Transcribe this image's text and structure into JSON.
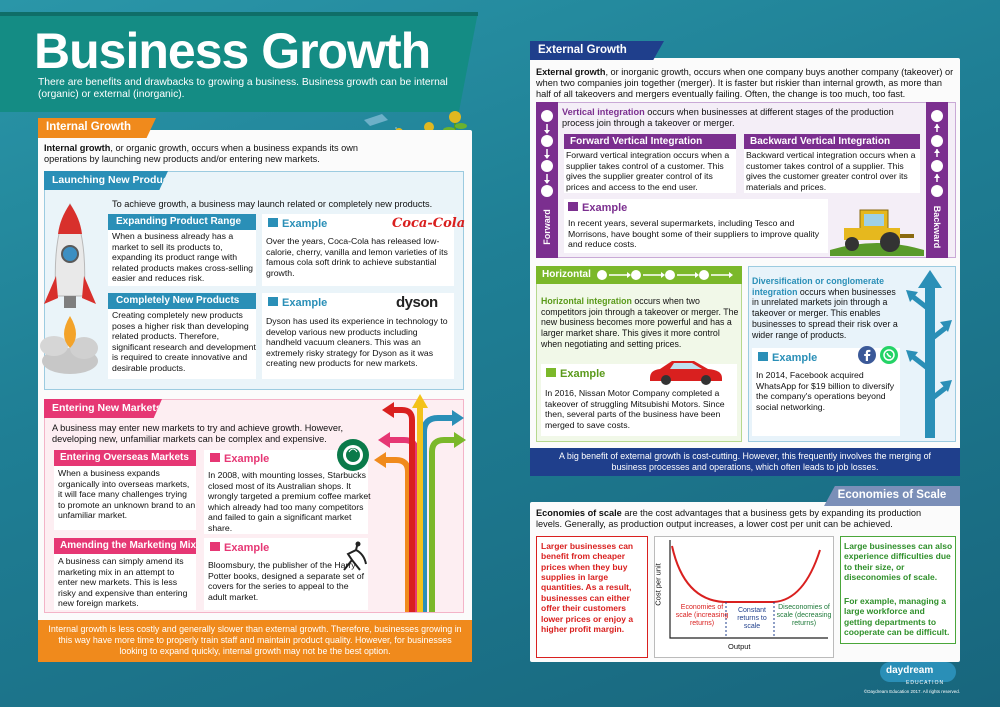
{
  "title": "Business Growth",
  "intro": "There are benefits and drawbacks to growing a business. Business growth can be internal (organic) or external (inorganic).",
  "internal": {
    "heading": "Internal Growth",
    "intro_bold": "Internal growth",
    "intro_rest": ", or organic growth, occurs when a business expands its own operations by launching new products and/or entering new markets.",
    "launching": {
      "heading": "Launching New Products",
      "intro": "To achieve growth, a business may launch related or completely new products.",
      "expanding": {
        "heading": "Expanding Product Range",
        "text": "When a business already has a market to sell its products to, expanding its product range with related products makes cross-selling easier and reduces risk.",
        "example_label": "Example",
        "example_text": "Over the years, Coca-Cola has released low-calorie, cherry, vanilla and lemon varieties of its famous cola soft drink to achieve substantial growth.",
        "logo": "Coca-Cola"
      },
      "completely": {
        "heading": "Completely New Products",
        "text": "Creating completely new products poses a higher risk than developing related products. Therefore, significant research and development is required to create innovative and desirable products.",
        "example_label": "Example",
        "example_text": "Dyson has used its experience in technology to develop various new products including handheld vacuum cleaners. This was an extremely risky strategy for Dyson as it was creating new products for new markets.",
        "logo": "dyson"
      }
    },
    "markets": {
      "heading": "Entering New Markets",
      "intro": "A business may enter new markets to try and achieve growth. However, developing new, unfamiliar markets can be complex and expensive.",
      "overseas": {
        "heading": "Entering Overseas Markets",
        "text": "When a business expands organically into overseas markets, it will face many challenges trying to promote an unknown brand to an unfamiliar market.",
        "example_label": "Example",
        "example_text": "In 2008, with mounting losses, Starbucks closed most of its Australian shops. It wrongly targeted a premium coffee market which already had too many competitors and failed to gain a significant market share."
      },
      "mix": {
        "heading": "Amending the Marketing Mix",
        "text": "A business can simply amend its marketing mix in an attempt to enter new markets. This is less risky and expensive than entering new foreign markets.",
        "example_label": "Example",
        "example_text": "Bloomsbury, the publisher of the Harry Potter books, designed a separate set of covers for the series to appeal to the adult market."
      }
    },
    "footer": "Internal growth is less costly and generally slower than external growth. Therefore, businesses growing in this way have more time to properly train staff and maintain product quality. However, for businesses looking to expand quickly, internal growth may not be the best option."
  },
  "external": {
    "heading": "External Growth",
    "intro_bold": "External growth",
    "intro_rest": ", or inorganic growth, occurs when one company buys another company (takeover) or when two companies join together (merger). It is faster but riskier than internal growth, as more than half of all takeovers and mergers eventually failing. Often, the change is too much, too fast.",
    "vertical": {
      "bold": "Vertical integration",
      "rest": " occurs when businesses at different stages of the production process join through a takeover or merger.",
      "forward_side": "Forward",
      "backward_side": "Backward",
      "forward": {
        "heading": "Forward Vertical Integration",
        "text": "Forward vertical integration occurs when a supplier takes control of a customer. This gives the supplier greater control of its prices and access to the end user."
      },
      "backward": {
        "heading": "Backward Vertical Integration",
        "text": "Backward vertical integration occurs when a customer takes control of a supplier. This gives the customer greater control over its materials and prices."
      },
      "example_label": "Example",
      "example_text": "In recent years, several supermarkets, including Tesco and Morrisons, have bought some of their suppliers to improve quality and reduce costs."
    },
    "horizontal": {
      "heading": "Horizontal",
      "bold": "Horizontal integration",
      "rest": " occurs when two competitors join through a takeover or merger. The new business becomes more powerful and has a larger market share. This gives it more control when negotiating and setting prices.",
      "example_label": "Example",
      "example_text": "In 2016, Nissan Motor Company completed a takeover of struggling Mitsubishi Motors. Since then, several parts of the business have been merged to save costs."
    },
    "diversification": {
      "bold": "Diversification or conglomerate integration",
      "rest": " occurs when businesses in unrelated markets join through a takeover or merger. This enables businesses to spread their risk over a wider range of products.",
      "example_label": "Example",
      "example_text": "In 2014, Facebook acquired WhatsApp for $19 billion to diversify the company's operations beyond social networking."
    },
    "footer": "A big benefit of external growth is cost-cutting. However, this frequently involves the merging of business processes and operations, which often leads to job losses."
  },
  "economies": {
    "heading": "Economies of Scale",
    "intro_bold": "Economies of scale",
    "intro_rest": " are the cost advantages that a business gets by expanding its production levels. Generally, as production output increases, a lower cost per unit can be achieved.",
    "left_text": "Larger businesses can benefit from cheaper prices when they buy supplies in large quantities. As a result, businesses can either offer their customers lower prices or enjoy a higher profit margin.",
    "right_text_1": "Large businesses can also experience difficulties due to their size, or diseconomies of scale.",
    "right_text_2": "For example, managing a large workforce and getting departments to cooperate can be difficult.",
    "chart": {
      "ylabel": "Cost per unit",
      "xlabel": "Output",
      "region1": "Economies of scale (increasing returns)",
      "region2": "Constant returns to scale",
      "region3": "Diseconomies of scale (decreasing returns)"
    }
  },
  "brand": {
    "name": "daydream",
    "sub": "EDUCATION",
    "copyright": "©Daydream Education 2017. All rights reserved."
  },
  "colors": {
    "teal": "#1f8a99",
    "orange": "#f08a1c",
    "pink": "#e63774",
    "purple": "#7b2f8f",
    "green": "#7bb82a",
    "blue": "#2a8fb7",
    "navy": "#1f3f8c",
    "red": "#d9201f"
  }
}
